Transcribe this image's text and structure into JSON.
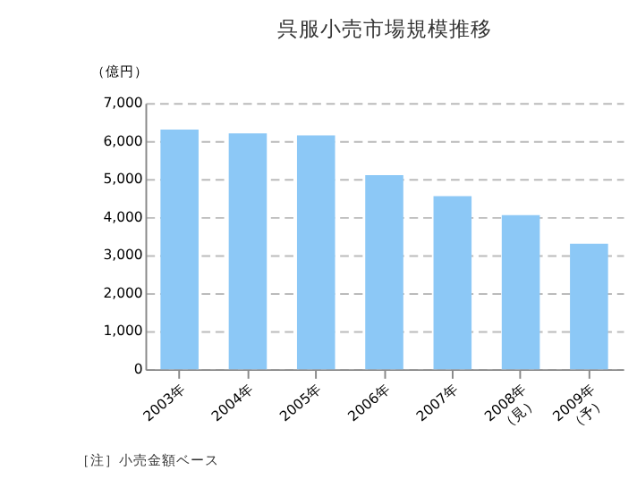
{
  "chart_data": {
    "type": "bar",
    "title": "呉服小売市場規模推移",
    "ylabel": "（億円）",
    "categories": [
      "2003年",
      "2004年",
      "2005年",
      "2006年",
      "2007年",
      "2008年\n（見）",
      "2009年\n（予）"
    ],
    "values": [
      6300,
      6200,
      6150,
      5100,
      4550,
      4050,
      3300
    ],
    "color": "#8cc8f6",
    "ylim": [
      0,
      7000
    ],
    "yticks": [
      0,
      {
        "value": 1000,
        "label": "1,000"
      },
      {
        "value": 2000,
        "label": "2,000"
      },
      {
        "value": 3000,
        "label": "3,000"
      },
      {
        "value": 4000,
        "label": "4,000"
      },
      {
        "value": 5000,
        "label": "5,000"
      },
      {
        "value": 6000,
        "label": "6,000"
      },
      {
        "value": 7000,
        "label": "7,000"
      }
    ],
    "grid": "y",
    "annotations": [
      "［注］小売金額ベース"
    ]
  }
}
